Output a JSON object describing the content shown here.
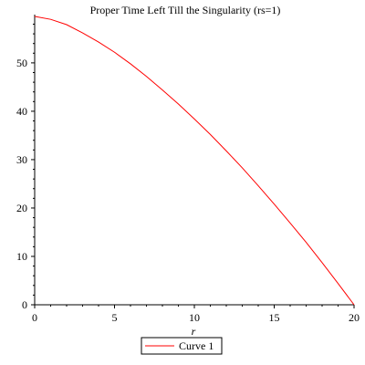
{
  "chart_data": {
    "type": "line",
    "title": "Proper Time Left Till the Singularity (rs=1)",
    "xlabel": "r",
    "ylabel": "",
    "xlim": [
      0,
      20
    ],
    "ylim": [
      0,
      59.6
    ],
    "xticks": [
      0,
      5,
      10,
      15,
      20
    ],
    "yticks": [
      0,
      10,
      20,
      30,
      40,
      50
    ],
    "grid": false,
    "legend_position": "bottom",
    "series": [
      {
        "name": "Curve 1",
        "color": "#ff0000",
        "x": [
          0,
          1,
          2,
          3,
          4,
          5,
          6,
          7,
          8,
          9,
          10,
          11,
          12,
          13,
          14,
          15,
          16,
          17,
          18,
          19,
          20
        ],
        "y": [
          59.6,
          59.0,
          57.9,
          56.2,
          54.3,
          52.2,
          49.8,
          47.2,
          44.4,
          41.5,
          38.4,
          35.2,
          31.8,
          28.3,
          24.6,
          20.8,
          16.9,
          12.9,
          8.7,
          4.4,
          0
        ]
      }
    ]
  }
}
